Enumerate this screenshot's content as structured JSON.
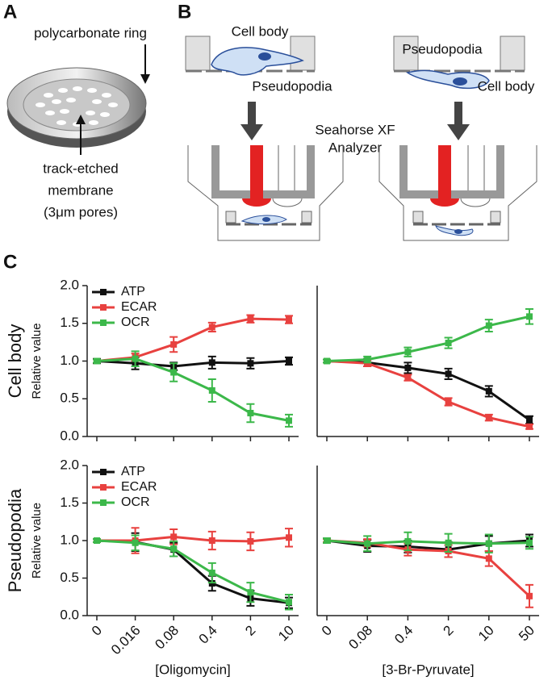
{
  "panel_a": {
    "label": "A",
    "ring_label": "polycarbonate ring",
    "membrane_label": [
      "track-etched",
      "membrane",
      "(3μm pores)"
    ]
  },
  "panel_b": {
    "label": "B",
    "left": {
      "top": "Cell body",
      "bottom": "Pseudopodia"
    },
    "right": {
      "top": "Pseudopodia",
      "bottom": "Cell body"
    },
    "instrument": [
      "Seahorse XF",
      "Analyzer"
    ]
  },
  "panel_c_label": "C",
  "chart_data": [
    {
      "type": "line",
      "row_label": "Cell body",
      "ylabel": "Relative value",
      "legend": "upper left",
      "categories": [
        null,
        null,
        null,
        null,
        null,
        null
      ],
      "ylim": [
        0,
        2
      ],
      "yticks": [
        {
          "value": 0,
          "label": "0.0"
        },
        {
          "value": 0.5,
          "label": "0.5"
        },
        {
          "value": 1,
          "label": "1.0"
        },
        {
          "value": 1.5,
          "label": "1.5"
        },
        {
          "value": 2,
          "label": "2.0"
        }
      ],
      "series": [
        {
          "name": "ATP",
          "color": "#111111",
          "values": [
            1.0,
            0.97,
            0.93,
            0.98,
            0.97,
            1.0
          ],
          "errors": [
            0.03,
            0.08,
            0.05,
            0.08,
            0.07,
            0.05
          ]
        },
        {
          "name": "ECAR",
          "color": "#e8413f",
          "values": [
            1.0,
            1.05,
            1.22,
            1.45,
            1.56,
            1.55
          ],
          "errors": [
            0.02,
            0.05,
            0.1,
            0.06,
            0.05,
            0.05
          ]
        },
        {
          "name": "OCR",
          "color": "#3cb84a",
          "values": [
            1.0,
            1.03,
            0.85,
            0.61,
            0.31,
            0.21
          ],
          "errors": [
            0.02,
            0.1,
            0.12,
            0.15,
            0.12,
            0.08
          ]
        }
      ]
    },
    {
      "type": "line",
      "categories": [
        null,
        null,
        null,
        null,
        null,
        null
      ],
      "ylim": [
        0,
        2
      ],
      "series": [
        {
          "color": "#111111",
          "values": [
            1.0,
            0.98,
            0.91,
            0.83,
            0.6,
            0.22
          ],
          "errors": [
            0.02,
            0.05,
            0.07,
            0.07,
            0.07,
            0.05
          ]
        },
        {
          "color": "#e8413f",
          "values": [
            1.0,
            0.97,
            0.78,
            0.46,
            0.25,
            0.13
          ],
          "errors": [
            0.02,
            0.04,
            0.04,
            0.05,
            0.04,
            0.03
          ]
        },
        {
          "color": "#3cb84a",
          "values": [
            1.0,
            1.02,
            1.12,
            1.24,
            1.47,
            1.59
          ],
          "errors": [
            0.02,
            0.04,
            0.06,
            0.07,
            0.08,
            0.1
          ]
        }
      ]
    },
    {
      "type": "line",
      "row_label": "Pseudopodia",
      "ylabel": "Relative value",
      "legend": "upper left",
      "xlabel": "[Oligomycin]",
      "categories": [
        "0",
        "0.016",
        "0.08",
        "0.4",
        "2",
        "10"
      ],
      "ylim": [
        0,
        2
      ],
      "yticks": [
        {
          "value": 0,
          "label": "0.0"
        },
        {
          "value": 0.5,
          "label": "0.5"
        },
        {
          "value": 1,
          "label": "1.0"
        },
        {
          "value": 1.5,
          "label": "1.5"
        },
        {
          "value": 2,
          "label": "2.0"
        }
      ],
      "series": [
        {
          "name": "ATP",
          "color": "#111111",
          "values": [
            1.0,
            0.98,
            0.88,
            0.43,
            0.23,
            0.17
          ],
          "errors": [
            0.02,
            0.12,
            0.09,
            0.1,
            0.1,
            0.07
          ]
        },
        {
          "name": "ECAR",
          "color": "#e8413f",
          "values": [
            1.0,
            1.0,
            1.05,
            1.0,
            0.99,
            1.04
          ],
          "errors": [
            0.02,
            0.17,
            0.1,
            0.12,
            0.12,
            0.12
          ]
        },
        {
          "name": "OCR",
          "color": "#3cb84a",
          "values": [
            1.0,
            0.97,
            0.89,
            0.57,
            0.31,
            0.18
          ],
          "errors": [
            0.02,
            0.1,
            0.1,
            0.13,
            0.13,
            0.1
          ]
        }
      ]
    },
    {
      "type": "line",
      "xlabel": "[3-Br-Pyruvate]",
      "categories": [
        "0",
        "0.08",
        "0.4",
        "2",
        "10",
        "50"
      ],
      "ylim": [
        0,
        2
      ],
      "series": [
        {
          "color": "#111111",
          "values": [
            1.0,
            0.93,
            0.92,
            0.88,
            0.96,
            1.0
          ],
          "errors": [
            0.03,
            0.08,
            0.08,
            0.1,
            0.1,
            0.08
          ]
        },
        {
          "color": "#e8413f",
          "values": [
            1.0,
            0.97,
            0.88,
            0.86,
            0.76,
            0.26
          ],
          "errors": [
            0.02,
            0.05,
            0.08,
            0.08,
            0.1,
            0.15
          ]
        },
        {
          "color": "#3cb84a",
          "values": [
            1.0,
            0.96,
            0.99,
            0.97,
            0.96,
            0.97
          ],
          "errors": [
            0.03,
            0.1,
            0.12,
            0.12,
            0.12,
            0.08
          ]
        }
      ]
    }
  ]
}
